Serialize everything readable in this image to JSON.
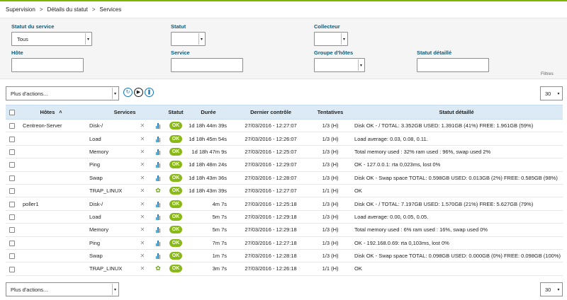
{
  "breadcrumb": [
    "Supervision",
    "Détails du statut",
    "Services"
  ],
  "filters": {
    "service_status_label": "Statut du service",
    "service_status_value": "Tous",
    "status_label": "Statut",
    "status_value": "",
    "collector_label": "Collecteur",
    "collector_value": "",
    "host_label": "Hôte",
    "host_value": "",
    "service_label": "Service",
    "service_value": "",
    "hostgroup_label": "Groupe d'hôtes",
    "hostgroup_value": "",
    "detailed_status_label": "Statut détaillé",
    "detailed_status_value": "",
    "filters_button": "Filtres"
  },
  "toolbar": {
    "actions_label": "Plus d'actions...",
    "page_size": "30"
  },
  "columns": {
    "hosts": "Hôtes",
    "services": "Services",
    "status": "Statut",
    "duration": "Durée",
    "last_check": "Dernier contrôle",
    "attempts": "Tentatives",
    "detailed_status": "Statut détaillé"
  },
  "rows": [
    {
      "host": "Centreon-Server",
      "service": "Disk-/",
      "icon": "graph-icon",
      "status": "OK",
      "duration": "1d 18h 44m 39s",
      "last_check": "27/03/2016 - 12:27:07",
      "attempts": "1/3 (H)",
      "detail": "Disk OK - / TOTAL: 3.352GB USED: 1.391GB (41%) FREE: 1.961GB (59%)"
    },
    {
      "host": "",
      "service": "Load",
      "icon": "graph-icon",
      "status": "OK",
      "duration": "1d 18h 45m 54s",
      "last_check": "27/03/2016 - 12:26:07",
      "attempts": "1/3 (H)",
      "detail": "Load average: 0.03, 0.08, 0.11."
    },
    {
      "host": "",
      "service": "Memory",
      "icon": "graph-icon",
      "status": "OK",
      "duration": "1d 18h 47m 9s",
      "last_check": "27/03/2016 - 12:25:07",
      "attempts": "1/3 (H)",
      "detail": "Total memory used : 32% ram used : 96%, swap used 2%"
    },
    {
      "host": "",
      "service": "Ping",
      "icon": "graph-icon",
      "status": "OK",
      "duration": "1d 18h 48m 24s",
      "last_check": "27/03/2016 - 12:29:07",
      "attempts": "1/3 (H)",
      "detail": "OK - 127.0.0.1: rta 0,023ms, lost 0%"
    },
    {
      "host": "",
      "service": "Swap",
      "icon": "graph-icon",
      "status": "OK",
      "duration": "1d 18h 43m 36s",
      "last_check": "27/03/2016 - 12:28:07",
      "attempts": "1/3 (H)",
      "detail": "Disk OK - Swap space TOTAL: 0.598GB USED: 0.013GB (2%) FREE: 0.585GB (98%)"
    },
    {
      "host": "",
      "service": "TRAP_LINUX",
      "icon": "leaf-icon",
      "status": "OK",
      "duration": "1d 18h 43m 39s",
      "last_check": "27/03/2016 - 12:27:07",
      "attempts": "1/1 (H)",
      "detail": "OK"
    },
    {
      "host": "poller1",
      "service": "Disk-/",
      "icon": "graph-icon",
      "status": "OK",
      "duration": "4m 7s",
      "last_check": "27/03/2016 - 12:25:18",
      "attempts": "1/3 (H)",
      "detail": "Disk OK - / TOTAL: 7.197GB USED: 1.570GB (21%) FREE: 5.627GB (79%)"
    },
    {
      "host": "",
      "service": "Load",
      "icon": "graph-icon",
      "status": "OK",
      "duration": "5m 7s",
      "last_check": "27/03/2016 - 12:29:18",
      "attempts": "1/3 (H)",
      "detail": "Load average: 0.00, 0.05, 0.05."
    },
    {
      "host": "",
      "service": "Memory",
      "icon": "graph-icon",
      "status": "OK",
      "duration": "5m 7s",
      "last_check": "27/03/2016 - 12:29:18",
      "attempts": "1/3 (H)",
      "detail": "Total memory used : 6% ram used : 16%, swap used 0%"
    },
    {
      "host": "",
      "service": "Ping",
      "icon": "graph-icon",
      "status": "OK",
      "duration": "7m 7s",
      "last_check": "27/03/2016 - 12:27:18",
      "attempts": "1/3 (H)",
      "detail": "OK - 192.168.0.69: rta 0,103ms, lost 0%"
    },
    {
      "host": "",
      "service": "Swap",
      "icon": "graph-icon",
      "status": "OK",
      "duration": "1m 7s",
      "last_check": "27/03/2016 - 12:28:18",
      "attempts": "1/3 (H)",
      "detail": "Disk OK - Swap space TOTAL: 0.098GB USED: 0.000GB (0%) FREE: 0.098GB (100%)"
    },
    {
      "host": "",
      "service": "TRAP_LINUX",
      "icon": "leaf-icon",
      "status": "OK",
      "duration": "3m 7s",
      "last_check": "27/03/2016 - 12:26:18",
      "attempts": "1/1 (H)",
      "detail": "OK"
    }
  ],
  "colors": {
    "accent": "#7ab800",
    "ok": "#88b917",
    "header_bg": "#dbeaf5",
    "label": "#0b5a7a"
  }
}
